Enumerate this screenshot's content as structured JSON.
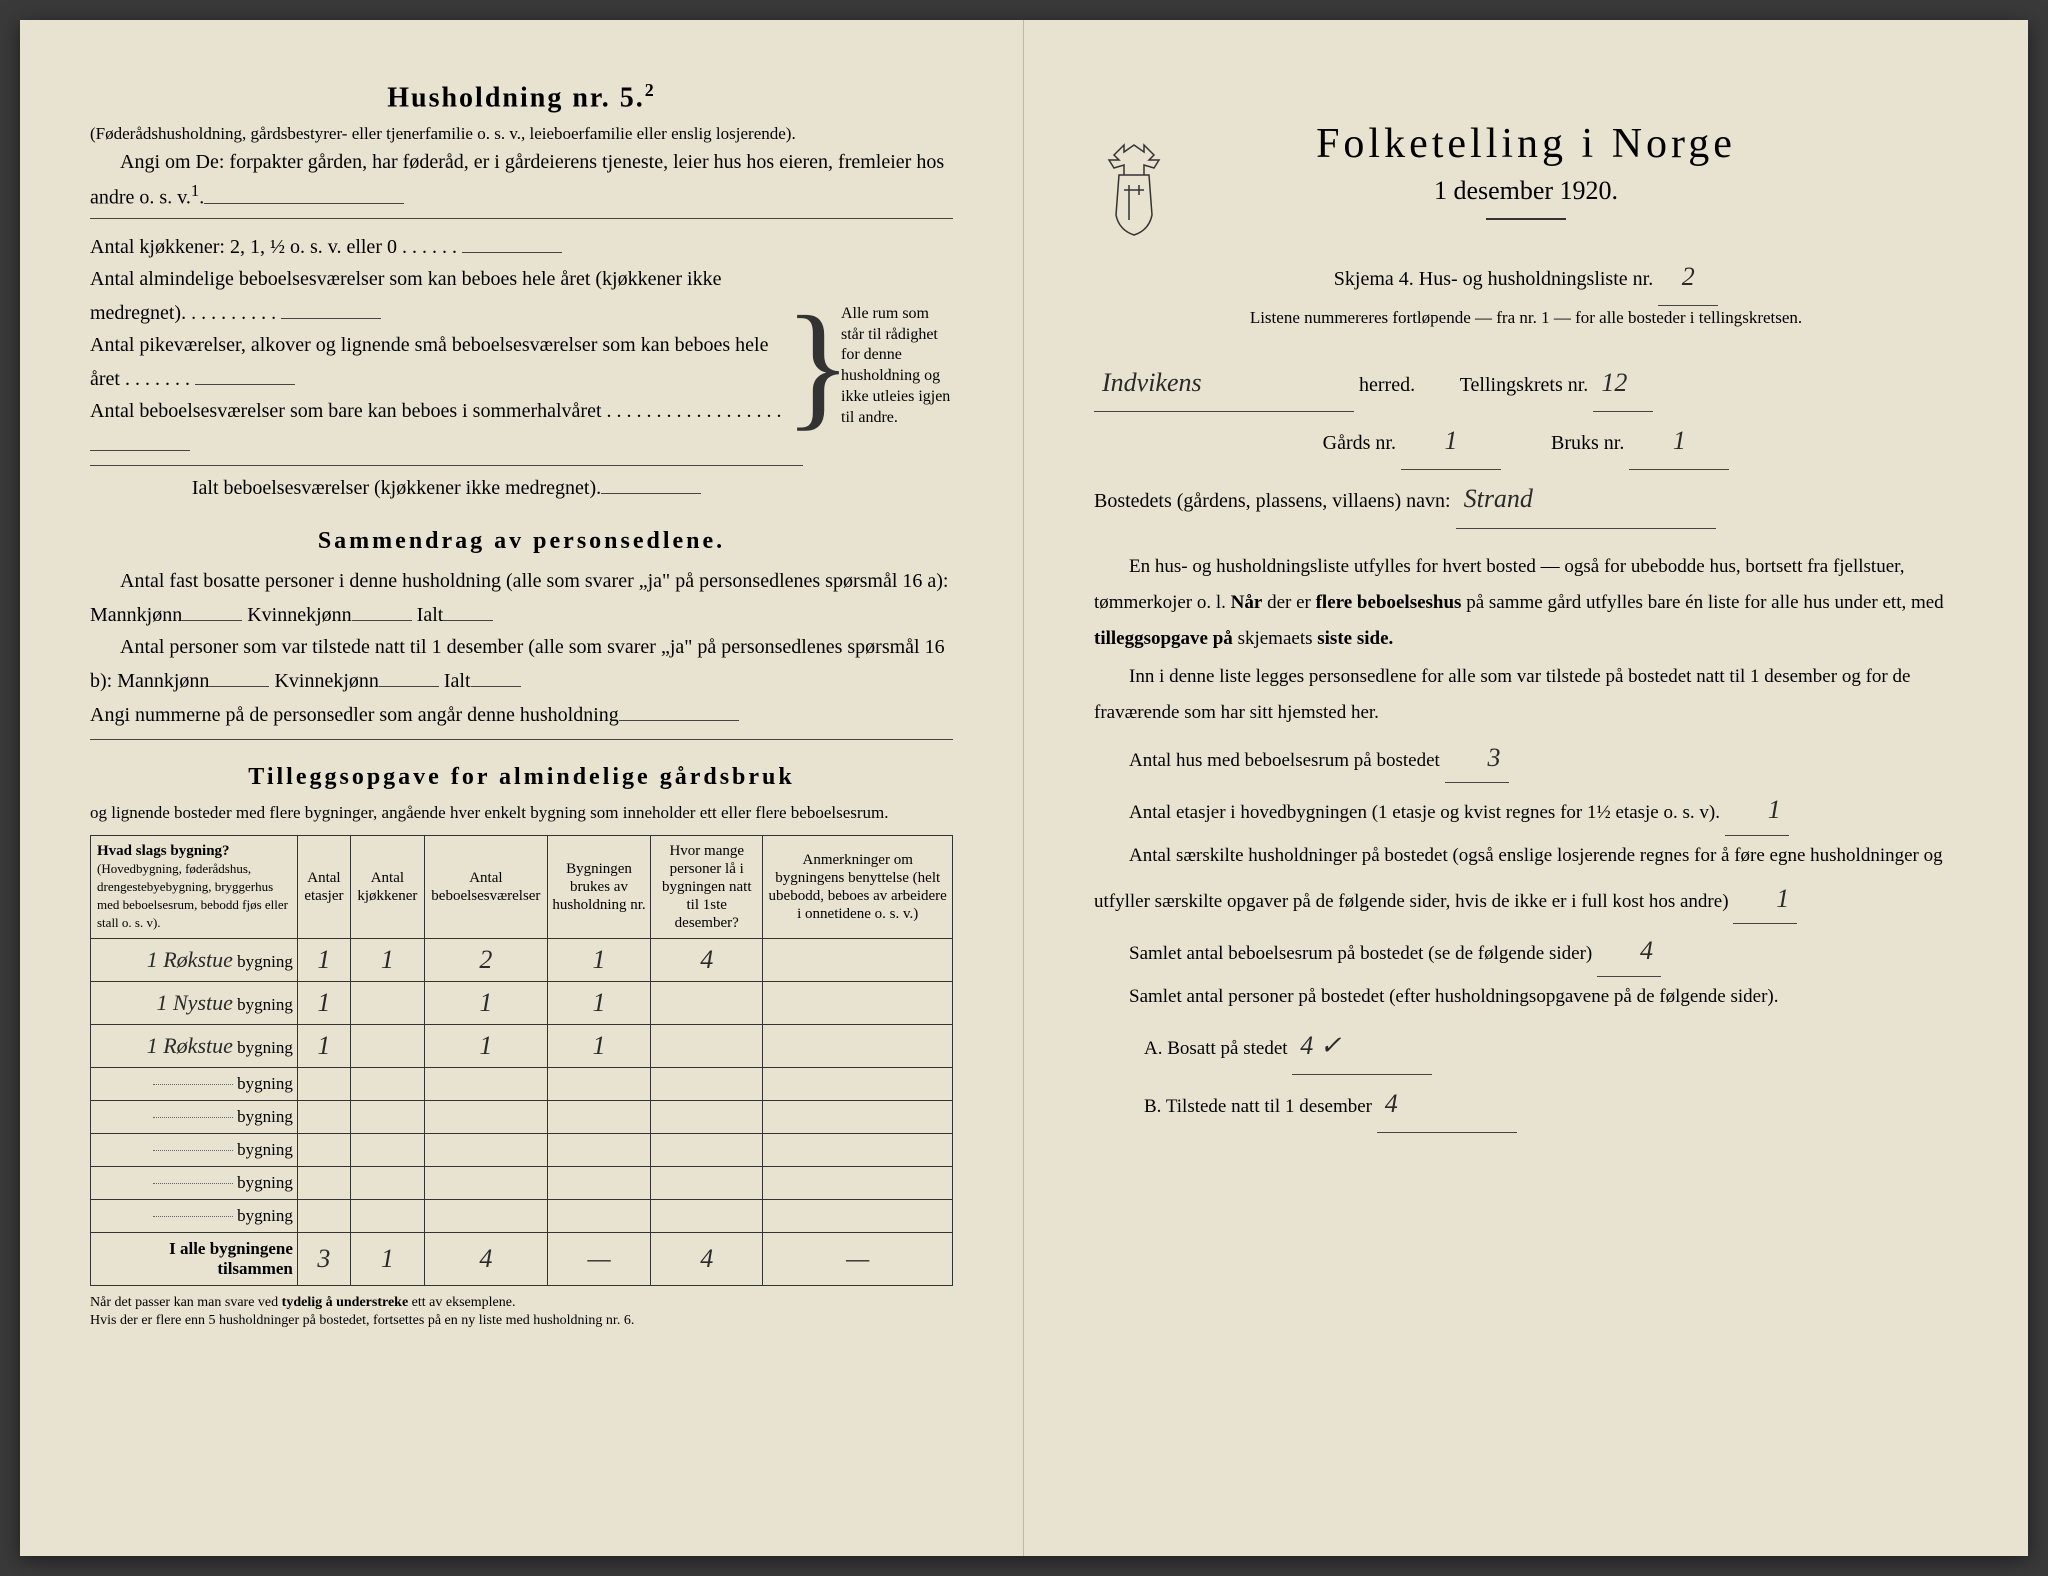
{
  "left": {
    "heading": "Husholdning nr. 5.",
    "heading_sup": "2",
    "intro1": "(Føderådshusholdning, gårdsbestyrer- eller tjenerfamilie o. s. v., leieboerfamilie eller enslig losjerende).",
    "intro2": "Angi om De: forpakter gården, har føderåd, er i gårdeierens tjeneste, leier hus hos eieren, fremleier hos andre o. s. v.",
    "kitchens": "Antal kjøkkener: 2, 1, ½ o. s. v. eller 0",
    "rooms1": "Antal almindelige beboelsesværelser som kan beboes hele året (kjøkkener ikke medregnet).",
    "rooms2": "Antal pikeværelser, alkover og lignende små beboelsesværelser som kan beboes hele året",
    "rooms3": "Antal beboelsesværelser som bare kan beboes i sommerhalvåret",
    "rooms_total": "Ialt beboelsesværelser  (kjøkkener ikke medregnet).",
    "brace_text": "Alle rum som står til rådighet for denne husholdning og ikke utleies igjen til andre.",
    "summary_heading": "Sammendrag av personsedlene.",
    "summary1a": "Antal fast bosatte personer i denne husholdning (alle som svarer „ja\" på personsedlenes spørsmål 16 a): Mannkjønn",
    "summary1b": "Kvinnekjønn",
    "summary1c": "Ialt",
    "summary2a": "Antal personer som var tilstede natt til 1 desember (alle som svarer „ja\" på personsedlenes spørsmål 16 b): Mannkjønn",
    "summary_numbers": "Angi nummerne på de personsedler som angår denne husholdning",
    "tillegg_heading": "Tilleggsopgave for almindelige gårdsbruk",
    "tillegg_sub": "og lignende bosteder med flere bygninger, angående hver enkelt bygning som inneholder ett eller flere beboelsesrum.",
    "th1": "Hvad slags bygning?\n(Hovedbygning, føderådshus, drengestuebygning, bryggerhus med beboelsesrum, bebodd fjøs eller stall o. s. v).",
    "th2": "Antal etasjer",
    "th3": "Antal kjøkkener",
    "th4": "Antal beboelsesværelser",
    "th5": "Bygningen brukes av husholdning nr.",
    "th6": "Hvor mange personer lå i bygningen natt til 1ste desember?",
    "th7": "Anmerkninger om bygningens benyttelse (helt ubebodd, beboes av arbeidere i onnetidene o. s. v.)",
    "bygning": "bygning",
    "rows": [
      {
        "name": "Røkstue",
        "v": [
          "1",
          "1",
          "2",
          "1",
          "4",
          ""
        ]
      },
      {
        "name": "Nystue",
        "v": [
          "1",
          "",
          "1",
          "1",
          "",
          ""
        ]
      },
      {
        "name": "Røkstue",
        "v": [
          "1",
          "",
          "1",
          "1",
          "",
          ""
        ]
      },
      {
        "name": "",
        "v": [
          "",
          "",
          "",
          "",
          "",
          ""
        ]
      },
      {
        "name": "",
        "v": [
          "",
          "",
          "",
          "",
          "",
          ""
        ]
      },
      {
        "name": "",
        "v": [
          "",
          "",
          "",
          "",
          "",
          ""
        ]
      },
      {
        "name": "",
        "v": [
          "",
          "",
          "",
          "",
          "",
          ""
        ]
      },
      {
        "name": "",
        "v": [
          "",
          "",
          "",
          "",
          "",
          ""
        ]
      }
    ],
    "total_label": "I alle bygningene tilsammen",
    "totals": [
      "3",
      "1",
      "4",
      "—",
      "4",
      "—"
    ],
    "footnote": "Når det passer kan man svare ved tydelig å understreke ett av eksemplene.\nHvis der er flere enn 5 husholdninger på bostedet, fortsettes på en ny liste med husholdning nr. 6."
  },
  "right": {
    "title": "Folketelling i Norge",
    "subtitle": "1 desember 1920.",
    "skjema": "Skjema 4.  Hus- og husholdningsliste nr.",
    "skjema_val": "2",
    "listene": "Listene nummereres fortløpende — fra nr. 1 — for alle bosteder i tellingskretsen.",
    "herred_val": "Indvikens",
    "herred": "herred.",
    "krets": "Tellingskrets nr.",
    "krets_val": "12",
    "gards": "Gårds nr.",
    "gards_val": "1",
    "bruks": "Bruks nr.",
    "bruks_val": "1",
    "bosted": "Bostedets (gårdens, plassens, villaens) navn:",
    "bosted_val": "Strand",
    "p1": "En hus- og husholdningsliste utfylles for hvert bosted — også for ubebodde hus, bortsett fra fjellstuer, tømmerkojer o. l.  Når der er flere beboelseshus på samme gård utfylles bare én liste for alle hus under ett, med tilleggsopgave på skjemaets siste side.",
    "p2": "Inn i denne liste legges personsedlene for alle som var tilstede på bostedet natt til 1 desember og for de fraværende som har sitt hjemsted her.",
    "q1": "Antal hus med beboelsesrum på bostedet",
    "q1_val": "3",
    "q2": "Antal etasjer i hovedbygningen (1 etasje og kvist regnes for 1½ etasje o. s. v).",
    "q2_val": "1",
    "q3": "Antal særskilte husholdninger på bostedet (også enslige losjerende regnes for å føre egne husholdninger og utfyller særskilte opgaver på de følgende sider, hvis de ikke er i full kost hos andre)",
    "q3_val": "1",
    "q4": "Samlet antal beboelsesrum på bostedet (se de følgende sider)",
    "q4_val": "4",
    "q5": "Samlet antal personer på bostedet (efter husholdningsopgavene på de følgende sider).",
    "qa": "A.  Bosatt på stedet",
    "qa_val": "4 ✓",
    "qb": "B.  Tilstede natt til 1 desember",
    "qb_val": "4"
  },
  "colors": {
    "paper": "#e8e2d0",
    "ink": "#2a2a2a",
    "line": "#333333"
  }
}
